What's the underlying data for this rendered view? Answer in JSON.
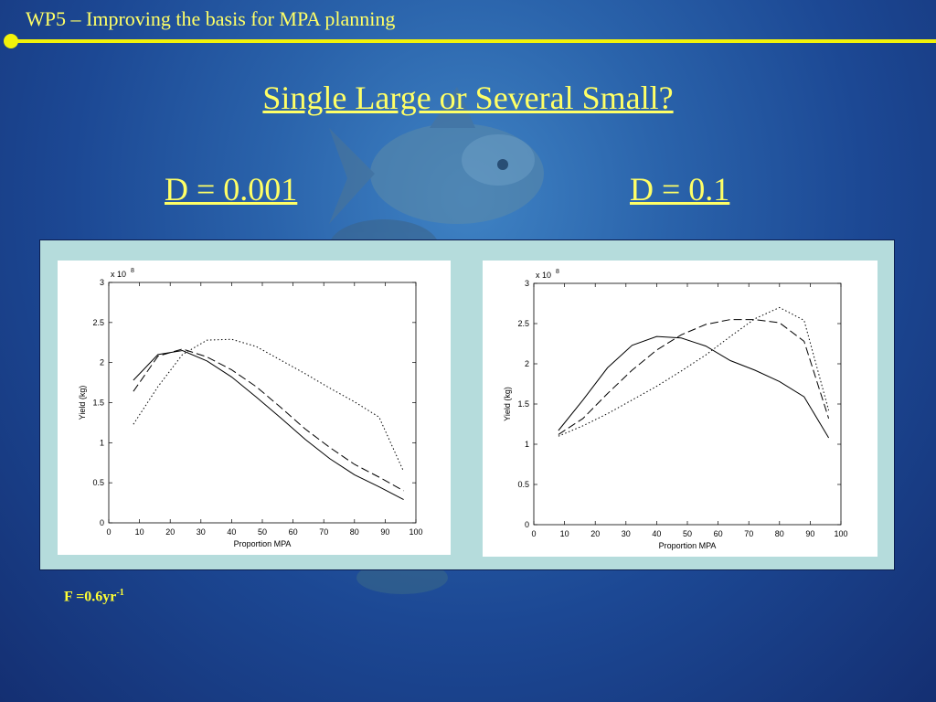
{
  "header": {
    "title": "WP5 – Improving the basis for MPA planning"
  },
  "slide": {
    "title": "Single Large or Several Small?",
    "left_label": "D = 0.001",
    "right_label": "D = 0.1",
    "footnote_main": "F =0.6yr",
    "footnote_sup": "-1"
  },
  "colors": {
    "accent": "#ffff66",
    "rule": "#f2f20a",
    "panel": "#b5dcdc"
  },
  "chart_data": [
    {
      "type": "line",
      "title": "",
      "xlabel": "Proportion MPA",
      "ylabel": "Yield (kg)",
      "multiplier": "x 10",
      "multiplier_exp": "8",
      "xlim": [
        0,
        100
      ],
      "ylim": [
        0,
        3
      ],
      "xticks": [
        0,
        10,
        20,
        30,
        40,
        50,
        60,
        70,
        80,
        90,
        100
      ],
      "yticks": [
        0,
        0.5,
        1,
        1.5,
        2,
        2.5,
        3
      ],
      "ytick_labels": [
        "0",
        "0.5",
        "1",
        "1.5",
        "2",
        "2.5",
        "3"
      ],
      "grid": false,
      "series": [
        {
          "style": "solid",
          "x": [
            8,
            16,
            24,
            32,
            40,
            48,
            56,
            64,
            72,
            80,
            88,
            96
          ],
          "y": [
            1.78,
            2.1,
            2.15,
            2.02,
            1.82,
            1.57,
            1.31,
            1.04,
            0.8,
            0.6,
            0.45,
            0.29
          ]
        },
        {
          "style": "dashed",
          "x": [
            8,
            16,
            24,
            32,
            40,
            48,
            56,
            64,
            72,
            80,
            88,
            96
          ],
          "y": [
            1.64,
            2.08,
            2.17,
            2.07,
            1.91,
            1.7,
            1.44,
            1.17,
            0.94,
            0.73,
            0.57,
            0.4
          ]
        },
        {
          "style": "dotted",
          "x": [
            8,
            16,
            24,
            32,
            40,
            48,
            56,
            64,
            72,
            80,
            88,
            96
          ],
          "y": [
            1.23,
            1.7,
            2.1,
            2.28,
            2.29,
            2.2,
            2.03,
            1.86,
            1.68,
            1.51,
            1.32,
            0.64
          ]
        }
      ]
    },
    {
      "type": "line",
      "title": "",
      "xlabel": "Proportion MPA",
      "ylabel": "Yield (kg)",
      "multiplier": "x 10",
      "multiplier_exp": "8",
      "xlim": [
        0,
        100
      ],
      "ylim": [
        0,
        3
      ],
      "xticks": [
        0,
        10,
        20,
        30,
        40,
        50,
        60,
        70,
        80,
        90,
        100
      ],
      "yticks": [
        0,
        0.5,
        1,
        1.5,
        2,
        2.5,
        3
      ],
      "ytick_labels": [
        "0",
        "0.5",
        "1",
        "1.5",
        "2",
        "2.5",
        "3"
      ],
      "grid": false,
      "series": [
        {
          "style": "solid",
          "x": [
            8,
            16,
            24,
            32,
            40,
            48,
            56,
            64,
            72,
            80,
            88,
            96
          ],
          "y": [
            1.17,
            1.55,
            1.95,
            2.23,
            2.34,
            2.32,
            2.22,
            2.04,
            1.92,
            1.78,
            1.59,
            1.08
          ]
        },
        {
          "style": "dashed",
          "x": [
            8,
            16,
            24,
            32,
            40,
            48,
            56,
            64,
            72,
            80,
            88,
            96
          ],
          "y": [
            1.12,
            1.32,
            1.63,
            1.92,
            2.17,
            2.36,
            2.49,
            2.55,
            2.55,
            2.51,
            2.28,
            1.32
          ]
        },
        {
          "style": "dotted",
          "x": [
            8,
            16,
            24,
            32,
            40,
            48,
            56,
            64,
            72,
            80,
            88,
            96
          ],
          "y": [
            1.1,
            1.23,
            1.38,
            1.55,
            1.72,
            1.91,
            2.11,
            2.34,
            2.56,
            2.7,
            2.54,
            1.42
          ]
        }
      ]
    }
  ]
}
